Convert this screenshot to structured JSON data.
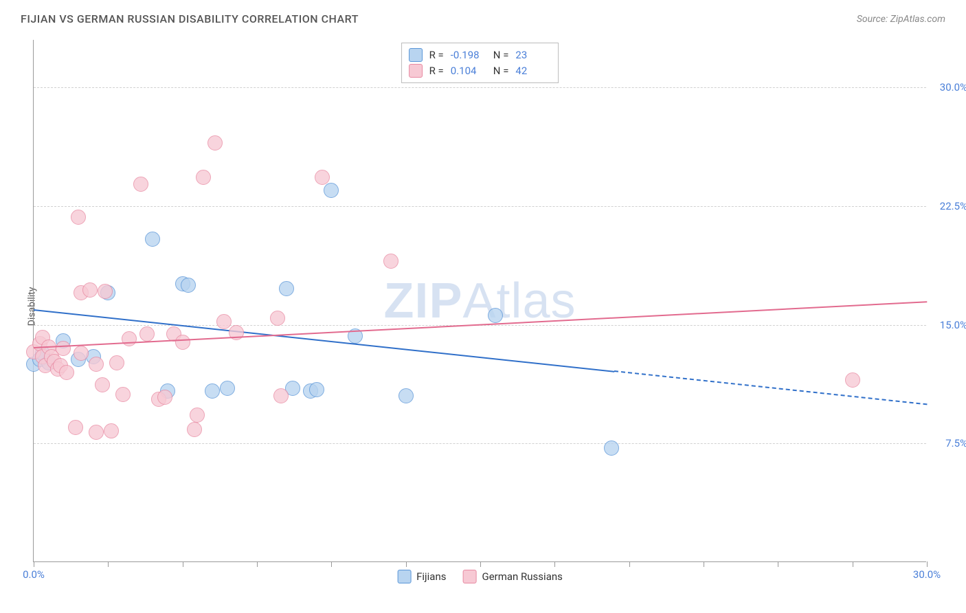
{
  "title": "FIJIAN VS GERMAN RUSSIAN DISABILITY CORRELATION CHART",
  "source": "Source: ZipAtlas.com",
  "ylabel": "Disability",
  "watermark_bold": "ZIP",
  "watermark_rest": "Atlas",
  "chart": {
    "type": "scatter",
    "background_color": "#ffffff",
    "grid_color": "#d0d0d0",
    "axis_color": "#999999",
    "text_color_axis": "#4a7fd8",
    "xlim": [
      0,
      30
    ],
    "ylim": [
      0,
      33
    ],
    "yticks": [
      {
        "v": 7.5,
        "label": "7.5%"
      },
      {
        "v": 15.0,
        "label": "15.0%"
      },
      {
        "v": 22.5,
        "label": "22.5%"
      },
      {
        "v": 30.0,
        "label": "30.0%"
      }
    ],
    "xticks_major": [
      0,
      30
    ],
    "xtick_labels": {
      "0": "0.0%",
      "30": "30.0%"
    },
    "xticks_minor": [
      2.5,
      5,
      7.5,
      10,
      12.5,
      15,
      17.5,
      20,
      22.5,
      25,
      27.5
    ],
    "marker_radius": 11,
    "marker_stroke_width": 1.5,
    "trend_line_width": 2
  },
  "series": {
    "fijians": {
      "label": "Fijians",
      "fill": "#b8d4f0",
      "stroke": "#5a96d8",
      "trend_color": "#2f6fc9",
      "R": "-0.198",
      "N": "23",
      "trend_solid": {
        "x1": 0,
        "y1": 16.0,
        "x2": 19.5,
        "y2": 12.1
      },
      "trend_dash": {
        "x1": 19.5,
        "y1": 12.1,
        "x2": 30,
        "y2": 10.0
      },
      "points": [
        [
          0.0,
          12.5
        ],
        [
          0.2,
          12.8
        ],
        [
          0.3,
          13.2
        ],
        [
          0.5,
          12.6
        ],
        [
          1.0,
          14.0
        ],
        [
          1.5,
          12.8
        ],
        [
          2.0,
          13.0
        ],
        [
          2.5,
          17.0
        ],
        [
          4.0,
          20.4
        ],
        [
          4.5,
          10.8
        ],
        [
          5.0,
          17.6
        ],
        [
          5.2,
          17.5
        ],
        [
          6.0,
          10.8
        ],
        [
          6.5,
          11.0
        ],
        [
          8.5,
          17.3
        ],
        [
          8.7,
          11.0
        ],
        [
          9.3,
          10.8
        ],
        [
          9.5,
          10.9
        ],
        [
          10.0,
          23.5
        ],
        [
          10.8,
          14.3
        ],
        [
          12.5,
          10.5
        ],
        [
          15.5,
          15.6
        ],
        [
          19.4,
          7.2
        ]
      ]
    },
    "german_russians": {
      "label": "German Russians",
      "fill": "#f7c9d4",
      "stroke": "#e88aa2",
      "trend_color": "#e26a8e",
      "R": "0.104",
      "N": "42",
      "trend_solid": {
        "x1": 0,
        "y1": 13.6,
        "x2": 30,
        "y2": 16.5
      },
      "points": [
        [
          0.0,
          13.3
        ],
        [
          0.2,
          13.8
        ],
        [
          0.3,
          13.0
        ],
        [
          0.3,
          14.2
        ],
        [
          0.4,
          12.4
        ],
        [
          0.5,
          13.6
        ],
        [
          0.6,
          13.0
        ],
        [
          0.7,
          12.7
        ],
        [
          0.8,
          12.2
        ],
        [
          0.9,
          12.4
        ],
        [
          1.0,
          13.5
        ],
        [
          1.1,
          12.0
        ],
        [
          1.4,
          8.5
        ],
        [
          1.5,
          21.8
        ],
        [
          1.6,
          13.2
        ],
        [
          1.6,
          17.0
        ],
        [
          1.9,
          17.2
        ],
        [
          2.1,
          8.2
        ],
        [
          2.1,
          12.5
        ],
        [
          2.3,
          11.2
        ],
        [
          2.4,
          17.1
        ],
        [
          2.6,
          8.3
        ],
        [
          2.8,
          12.6
        ],
        [
          3.0,
          10.6
        ],
        [
          3.2,
          14.1
        ],
        [
          3.6,
          23.9
        ],
        [
          3.8,
          14.4
        ],
        [
          4.2,
          10.3
        ],
        [
          4.4,
          10.4
        ],
        [
          4.7,
          14.4
        ],
        [
          5.0,
          13.9
        ],
        [
          5.4,
          8.4
        ],
        [
          5.5,
          9.3
        ],
        [
          5.7,
          24.3
        ],
        [
          6.1,
          26.5
        ],
        [
          6.4,
          15.2
        ],
        [
          6.8,
          14.5
        ],
        [
          8.2,
          15.4
        ],
        [
          8.3,
          10.5
        ],
        [
          9.7,
          24.3
        ],
        [
          12.0,
          19.0
        ],
        [
          27.5,
          11.5
        ]
      ]
    }
  },
  "legend_stats": [
    {
      "series": "fijians"
    },
    {
      "series": "german_russians"
    }
  ],
  "bottom_legend": [
    {
      "series": "fijians"
    },
    {
      "series": "german_russians"
    }
  ]
}
